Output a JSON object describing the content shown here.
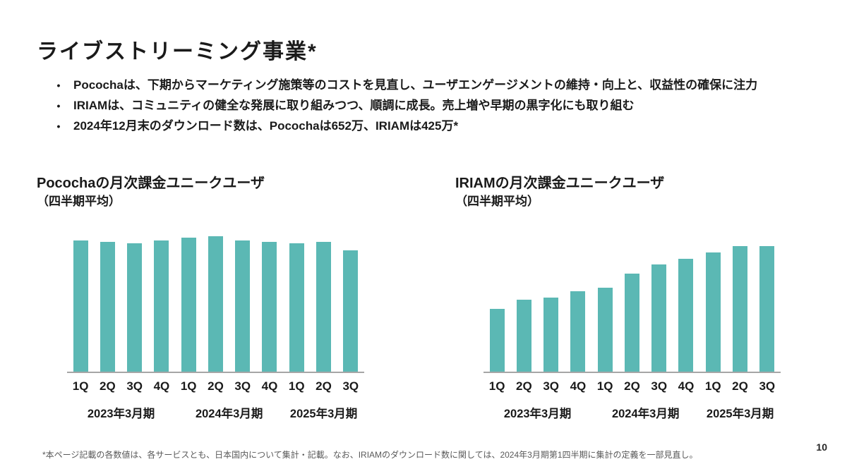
{
  "slide": {
    "title": "ライブストリーミング事業*",
    "bullets": [
      "Pocochaは、下期からマーケティング施策等のコストを見直し、ユーザエンゲージメントの維持・向上と、収益性の確保に注力",
      "IRIAMは、コミュニティの健全な発展に取り組みつつ、順調に成長。売上増や早期の黒字化にも取り組む",
      "2024年12月末のダウンロード数は、Pocochaは652万、IRIAMは425万*"
    ],
    "bullet_marker": "•",
    "footnote": "*本ページ記載の各数値は、各サービスとも、日本国内について集計・記載。なお、IRIAMのダウンロード数に関しては、2024年3月期第1四半期に集計の定義を一部見直し。",
    "page_number": "10"
  },
  "colors": {
    "bar": "#5bb8b4",
    "axis": "#a6a6a6",
    "text": "#1a1a1a",
    "footnote": "#595959"
  },
  "chart_data": [
    {
      "type": "bar",
      "title": "Pocochaの月次課金ユニークユーザ",
      "subtitle": "（四半期平均）",
      "categories": [
        "1Q",
        "2Q",
        "3Q",
        "4Q",
        "1Q",
        "2Q",
        "3Q",
        "4Q",
        "1Q",
        "2Q",
        "3Q"
      ],
      "values": [
        97,
        96,
        95,
        97,
        99,
        100,
        97,
        96,
        95,
        96,
        90
      ],
      "year_groups": [
        {
          "label": "2023年3月期",
          "span": 4
        },
        {
          "label": "2024年3月期",
          "span": 4
        },
        {
          "label": "2025年3月期",
          "span": 3
        }
      ],
      "xlabel": "",
      "ylabel": "",
      "ylim": [
        0,
        107
      ],
      "grid": false,
      "legend": false,
      "value_axis_labels_shown": false,
      "bar_color": "#5bb8b4",
      "axis_color": "#a6a6a6"
    },
    {
      "type": "bar",
      "title": "IRIAMの月次課金ユニークユーザ",
      "subtitle": "（四半期平均）",
      "categories": [
        "1Q",
        "2Q",
        "3Q",
        "4Q",
        "1Q",
        "2Q",
        "3Q",
        "4Q",
        "1Q",
        "2Q",
        "3Q"
      ],
      "values": [
        50,
        57,
        59,
        64,
        67,
        78,
        85,
        90,
        95,
        100,
        100
      ],
      "year_groups": [
        {
          "label": "2023年3月期",
          "span": 4
        },
        {
          "label": "2024年3月期",
          "span": 4
        },
        {
          "label": "2025年3月期",
          "span": 3
        }
      ],
      "xlabel": "",
      "ylabel": "",
      "ylim": [
        0,
        115
      ],
      "grid": false,
      "legend": false,
      "value_axis_labels_shown": false,
      "bar_color": "#5bb8b4",
      "axis_color": "#a6a6a6"
    }
  ]
}
